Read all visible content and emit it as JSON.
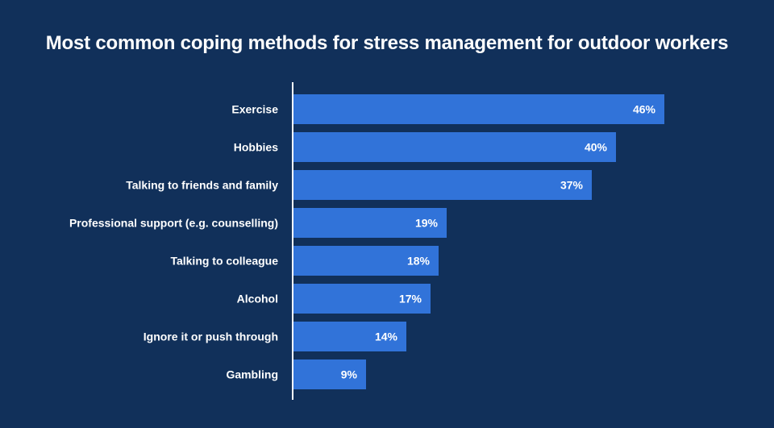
{
  "chart_data": {
    "type": "bar",
    "orientation": "horizontal",
    "title": "Most common coping methods for stress management for outdoor workers",
    "categories": [
      "Exercise",
      "Hobbies",
      "Talking to friends and family",
      "Professional support (e.g. counselling)",
      "Talking to colleague",
      "Alcohol",
      "Ignore it or push through",
      "Gambling"
    ],
    "values": [
      46,
      40,
      37,
      19,
      18,
      17,
      14,
      9
    ],
    "data_labels": [
      "46%",
      "40%",
      "37%",
      "19%",
      "18%",
      "17%",
      "14%",
      "9%"
    ],
    "unit": "%",
    "xlim": [
      0,
      50
    ],
    "grid": false,
    "colors": {
      "background": "#11305a",
      "bar": "#3173d9",
      "text": "#ffffff",
      "axis": "#ffffff"
    }
  }
}
